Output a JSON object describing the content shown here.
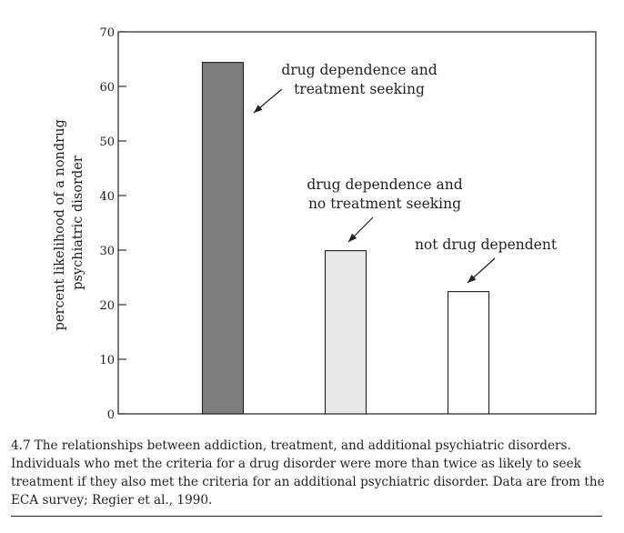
{
  "chart_data": {
    "type": "bar",
    "categories": [
      "drug dependence and treatment seeking",
      "drug dependence and no treatment seeking",
      "not drug dependent"
    ],
    "values": [
      64.4,
      29.9,
      22.4
    ],
    "bar_colors": [
      "#7d7d80",
      "#e6e7e8",
      "#ffffff"
    ],
    "annotations": [
      [
        "drug dependence and",
        "treatment seeking"
      ],
      [
        "drug dependence and",
        "no treatment seeking"
      ],
      [
        "not drug dependent"
      ]
    ],
    "title": "",
    "xlabel": "",
    "ylabel_lines": [
      "percent likelihood of a nondrug",
      "psychiatric disorder"
    ],
    "ylim": [
      0,
      70
    ],
    "yticks": [
      0,
      10,
      20,
      30,
      40,
      50,
      60,
      70
    ],
    "grid": false
  },
  "caption": {
    "number": "4.7",
    "text": "The relationships between addiction, treatment, and additional psychiatric disorders. Individuals who met the criteria for a drug disorder were more than twice as likely to seek treatment if they also met the criteria for an additional psychiatric disorder. Data are from the ECA survey; Regier et al., 1990."
  }
}
